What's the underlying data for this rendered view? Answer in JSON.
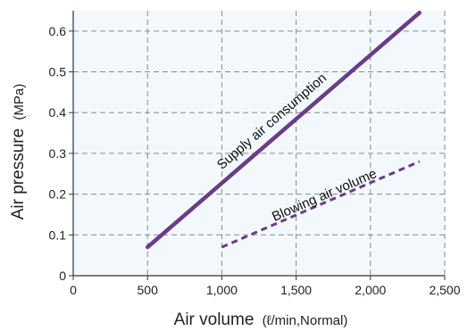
{
  "chart_data": {
    "type": "line",
    "xlabel": "Air volume",
    "xlabel_unit": "(ℓ/min,Normal)",
    "ylabel": "Air pressure",
    "ylabel_unit": "(MPa)",
    "xlim": [
      0,
      2500
    ],
    "ylim": [
      0,
      0.65
    ],
    "x_ticks": [
      0,
      500,
      1000,
      1500,
      2000,
      2500
    ],
    "x_tick_labels": [
      "0",
      "500",
      "1,000",
      "1,500",
      "2,000",
      "2,500"
    ],
    "y_ticks": [
      0,
      0.1,
      0.2,
      0.3,
      0.4,
      0.5,
      0.6
    ],
    "y_tick_labels": [
      "0",
      "0.1",
      "0.2",
      "0.3",
      "0.4",
      "0.5",
      "0.6"
    ],
    "grid": true,
    "background_color": "#f3f8fc",
    "grid_color": "#8a8a8a",
    "series": [
      {
        "name": "Supply air consumption",
        "color": "#6a3d87",
        "style": "solid",
        "points": [
          [
            500,
            0.07
          ],
          [
            2330,
            0.645
          ]
        ]
      },
      {
        "name": "Blowing air volume",
        "color": "#6a3d87",
        "style": "dashed",
        "points": [
          [
            1000,
            0.07
          ],
          [
            2330,
            0.28
          ]
        ]
      }
    ]
  }
}
